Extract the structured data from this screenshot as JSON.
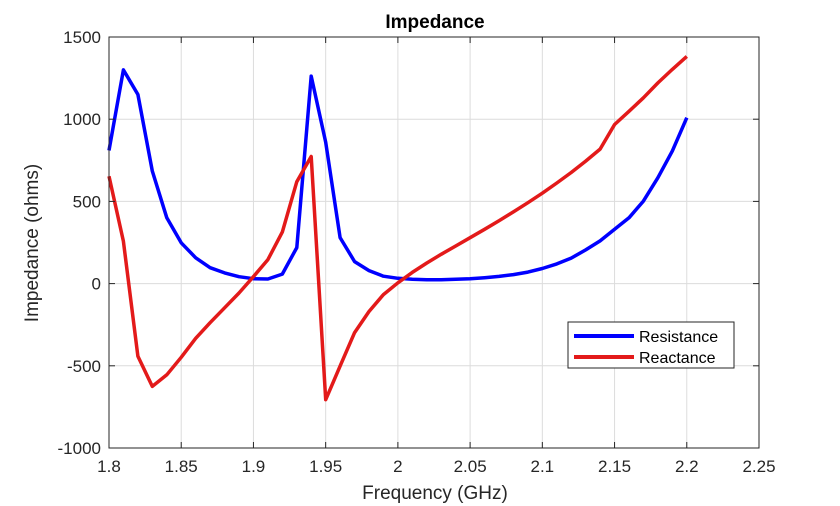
{
  "chart_data": {
    "type": "line",
    "title": "Impedance",
    "xlabel": "Frequency (GHz)",
    "ylabel": "Impedance (ohms)",
    "xlim": [
      1.8,
      2.25
    ],
    "ylim": [
      -1000,
      1500
    ],
    "xticks": [
      1.8,
      1.85,
      1.9,
      1.95,
      2.0,
      2.05,
      2.1,
      2.15,
      2.2,
      2.25
    ],
    "xtick_labels": [
      "1.8",
      "1.85",
      "1.9",
      "1.95",
      "2",
      "2.05",
      "2.1",
      "2.15",
      "2.2",
      "2.25"
    ],
    "yticks": [
      -1000,
      -500,
      0,
      500,
      1000,
      1500
    ],
    "ytick_labels": [
      "-1000",
      "-500",
      "0",
      "500",
      "1000",
      "1500"
    ],
    "grid": true,
    "legend_position": "lower-right",
    "x": [
      1.8,
      1.81,
      1.82,
      1.83,
      1.84,
      1.85,
      1.86,
      1.87,
      1.88,
      1.89,
      1.9,
      1.91,
      1.92,
      1.93,
      1.94,
      1.95,
      1.96,
      1.97,
      1.98,
      1.99,
      2.0,
      2.01,
      2.02,
      2.03,
      2.04,
      2.05,
      2.06,
      2.07,
      2.08,
      2.09,
      2.1,
      2.11,
      2.12,
      2.13,
      2.14,
      2.15,
      2.16,
      2.17,
      2.18,
      2.19,
      2.2
    ],
    "series": [
      {
        "name": "Resistance",
        "color": "#0000ff",
        "values": [
          810,
          1300,
          1150,
          685,
          400,
          248,
          157,
          97,
          65,
          42,
          30,
          28,
          58,
          219,
          1262,
          860,
          280,
          134,
          79,
          45,
          32,
          26,
          24,
          24,
          26,
          30,
          36,
          44,
          55,
          70,
          92,
          120,
          155,
          205,
          260,
          330,
          400,
          502,
          644,
          806,
          1009
        ]
      },
      {
        "name": "Reactance",
        "color": "#e31a1a",
        "values": [
          653,
          257,
          -442,
          -625,
          -555,
          -448,
          -333,
          -238,
          -147,
          -57,
          42,
          146,
          313,
          620,
          773,
          -706,
          -502,
          -298,
          -170,
          -67,
          5,
          68,
          125,
          178,
          229,
          279,
          330,
          382,
          436,
          492,
          550,
          612,
          676,
          745,
          818,
          968,
          1048,
          1130,
          1221,
          1303,
          1382
        ]
      }
    ]
  }
}
